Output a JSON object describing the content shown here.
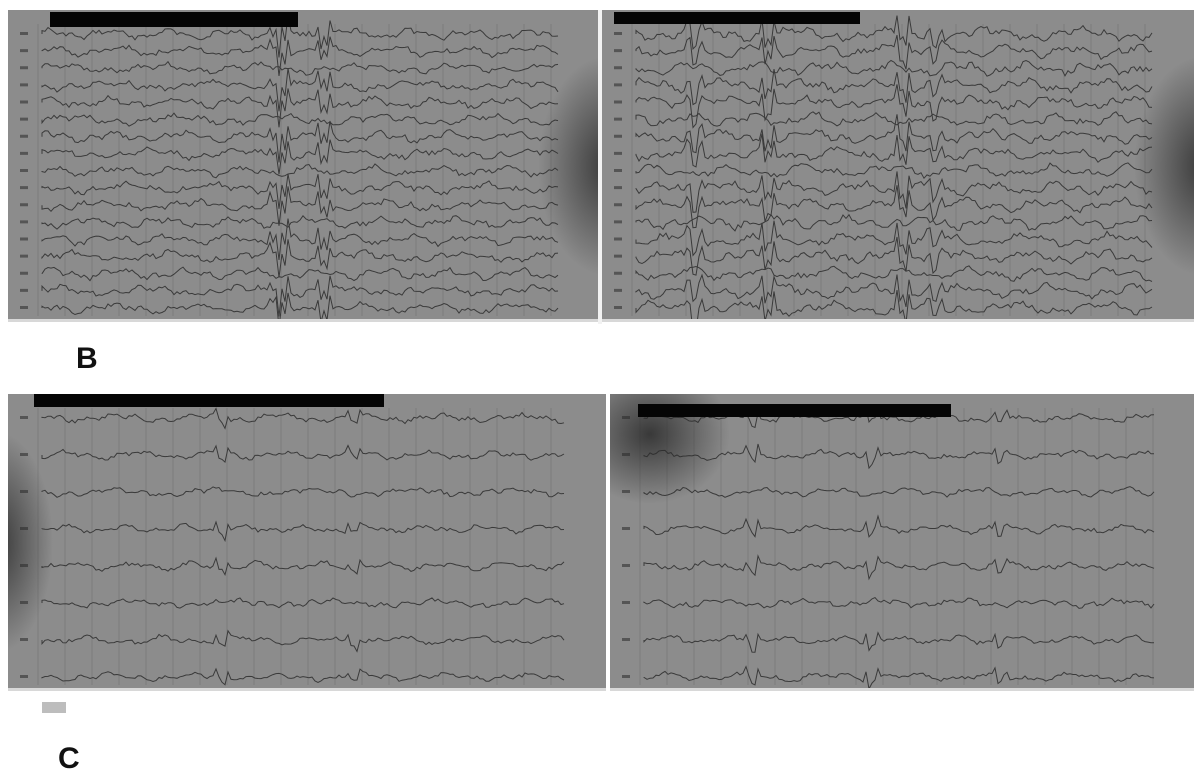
{
  "figure": {
    "panel_b_label": "B",
    "panel_c_label": "C"
  },
  "photos": [
    {
      "name": "eeg-photo-b-left",
      "channels": 17,
      "amp": 5,
      "spikes": [
        [
          0.46,
          14
        ],
        [
          0.47,
          16
        ],
        [
          0.55,
          12
        ]
      ],
      "shadow": "right"
    },
    {
      "name": "eeg-photo-b-right",
      "channels": 17,
      "amp": 6,
      "spikes": [
        [
          0.12,
          18
        ],
        [
          0.26,
          14
        ],
        [
          0.52,
          16
        ],
        [
          0.58,
          12
        ]
      ],
      "shadow": "right"
    },
    {
      "name": "eeg-photo-c-left",
      "channels": 8,
      "amp": 4,
      "spikes": [
        [
          0.35,
          8
        ],
        [
          0.6,
          6
        ]
      ],
      "shadow": "left"
    },
    {
      "name": "eeg-photo-c-right",
      "channels": 8,
      "amp": 4,
      "spikes": [
        [
          0.22,
          10
        ],
        [
          0.45,
          9
        ],
        [
          0.7,
          8
        ]
      ],
      "shadow": "topleft"
    }
  ],
  "colors": {
    "paper": "#8c8c8c",
    "trace": "#3a3a3a",
    "grid": "#7a7a7a",
    "redaction": "#050505"
  }
}
